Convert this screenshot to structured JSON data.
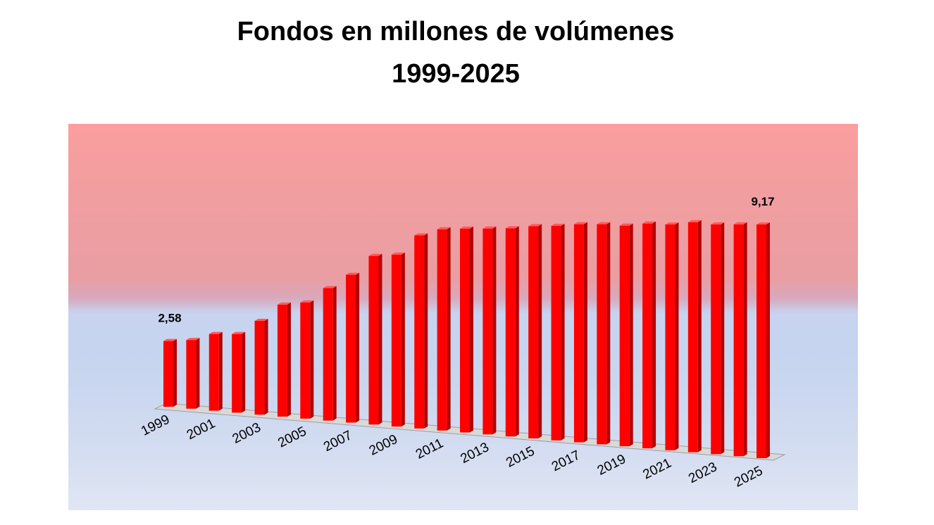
{
  "chart_data": {
    "type": "bar",
    "title": "Fondos en millones de volúmenes",
    "subtitle": "1999-2025",
    "categories": [
      "1999",
      "2000",
      "2001",
      "2002",
      "2003",
      "2004",
      "2005",
      "2006",
      "2007",
      "2008",
      "2009",
      "2010",
      "2011",
      "2012",
      "2013",
      "2014",
      "2015",
      "2016",
      "2017",
      "2018",
      "2019",
      "2020",
      "2021",
      "2022",
      "2023",
      "2024",
      "2025"
    ],
    "tick_labels": [
      "1999",
      "2001",
      "2003",
      "2005",
      "2007",
      "2009",
      "2011",
      "2013",
      "2015",
      "2017",
      "2019",
      "2021",
      "2023",
      "2025"
    ],
    "values": [
      2.58,
      2.7,
      3.01,
      3.09,
      3.68,
      4.4,
      4.56,
      5.2,
      5.8,
      6.62,
      6.75,
      7.58,
      7.9,
      8.0,
      8.08,
      8.17,
      8.33,
      8.42,
      8.56,
      8.64,
      8.66,
      8.82,
      8.86,
      9.03,
      9.02,
      9.1,
      9.17
    ],
    "data_labels": [
      {
        "category": "1999",
        "text": "2,58"
      },
      {
        "category": "2025",
        "text": "9,17"
      }
    ],
    "ylim": [
      0,
      10
    ],
    "grid": false,
    "legend": "none",
    "bar_color": "#ff0000",
    "bar_side_color": "#b30000",
    "bar_top_color": "#ff5a5a"
  }
}
